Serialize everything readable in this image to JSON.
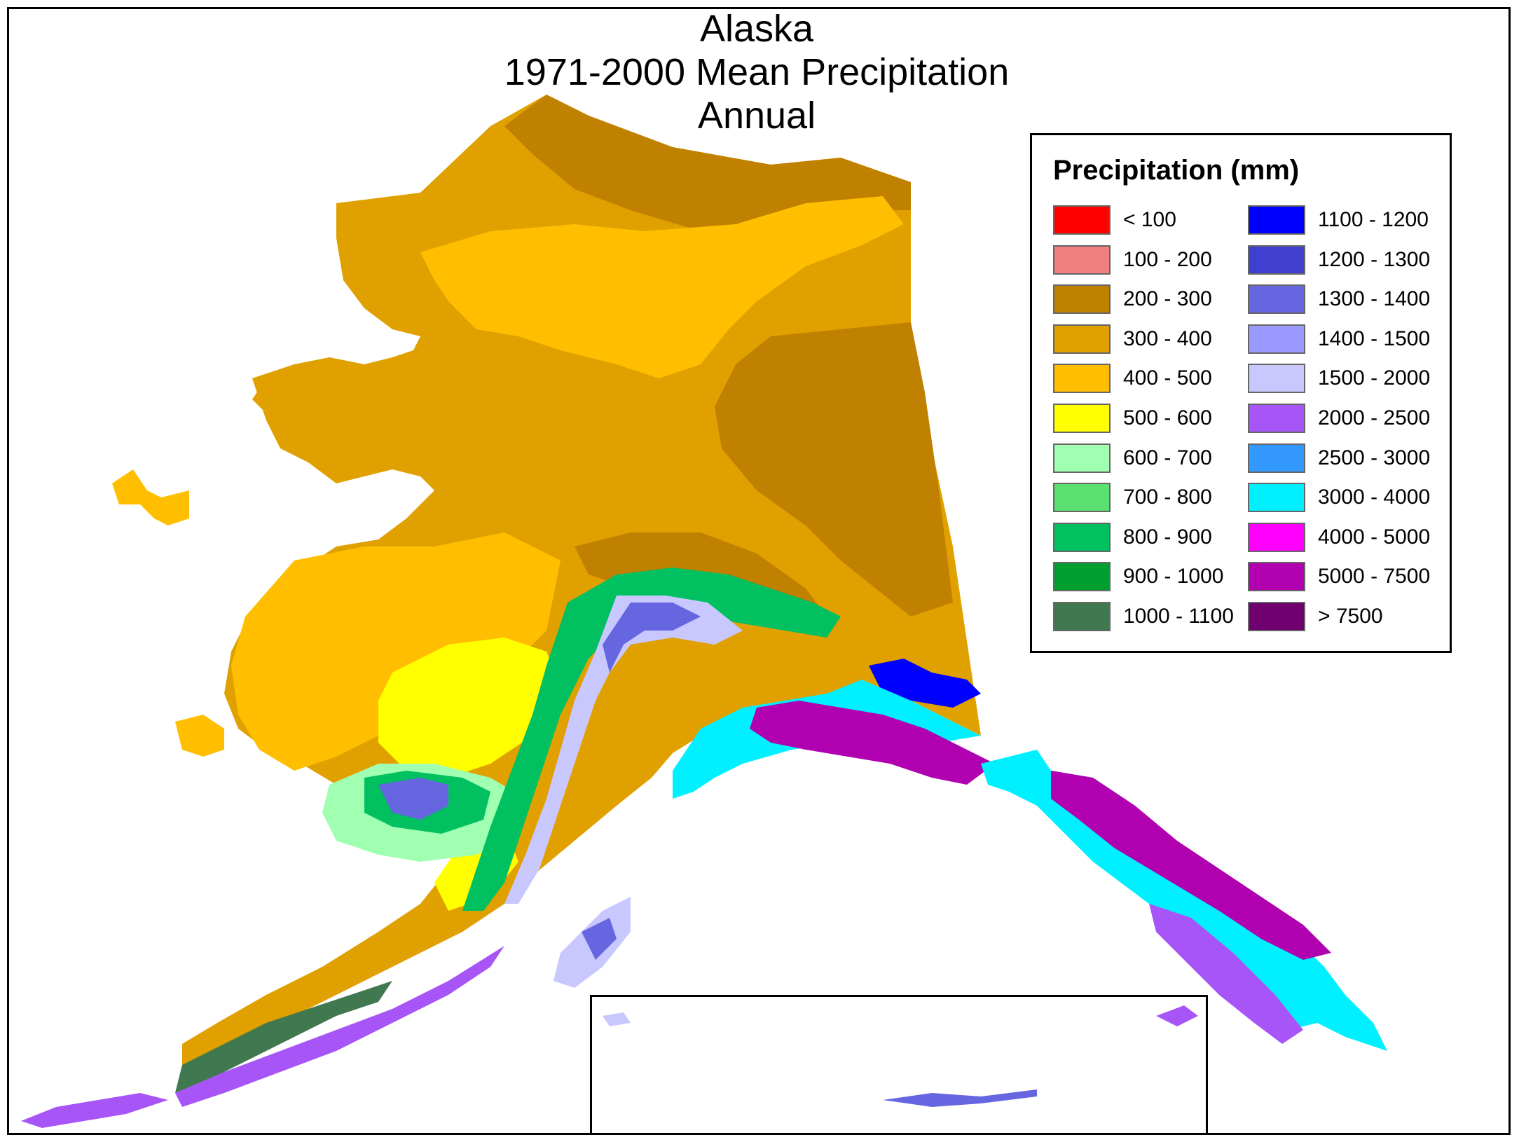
{
  "title": {
    "line1": "Alaska",
    "line2": "1971-2000 Mean Precipitation",
    "line3": "Annual"
  },
  "legend": {
    "title": "Precipitation (mm)",
    "items": [
      {
        "label": "< 100",
        "color": "#ff0000"
      },
      {
        "label": "100 - 200",
        "color": "#f08080"
      },
      {
        "label": "200 - 300",
        "color": "#c08000"
      },
      {
        "label": "300 - 400",
        "color": "#e0a000"
      },
      {
        "label": "400 - 500",
        "color": "#ffbf00"
      },
      {
        "label": "500 - 600",
        "color": "#ffff00"
      },
      {
        "label": "600 - 700",
        "color": "#a0ffb0"
      },
      {
        "label": "700 - 800",
        "color": "#5ae070"
      },
      {
        "label": "800 - 900",
        "color": "#00c060"
      },
      {
        "label": "900 - 1000",
        "color": "#00a030"
      },
      {
        "label": "1000 - 1100",
        "color": "#407850"
      },
      {
        "label": "1100 - 1200",
        "color": "#0000ff"
      },
      {
        "label": "1200 - 1300",
        "color": "#4040d0"
      },
      {
        "label": "1300 - 1400",
        "color": "#6666e0"
      },
      {
        "label": "1400 - 1500",
        "color": "#9999ff"
      },
      {
        "label": "1500 - 2000",
        "color": "#c8c8ff"
      },
      {
        "label": "2000 - 2500",
        "color": "#a855f7"
      },
      {
        "label": "2500 - 3000",
        "color": "#3399ff"
      },
      {
        "label": "3000 - 4000",
        "color": "#00f0ff"
      },
      {
        "label": "4000 - 5000",
        "color": "#ff00ff"
      },
      {
        "label": "5000 - 7500",
        "color": "#b000b0"
      },
      {
        "label": "> 7500",
        "color": "#700070"
      }
    ]
  },
  "map_colors": {
    "tundra_dry": "#c08000",
    "interior": "#e0a000",
    "lowland": "#ffbf00",
    "wetter": "#ffff00",
    "green_light": "#a0ffb0",
    "green": "#00c060",
    "green_dark": "#407850",
    "blue": "#0000ff",
    "blue_mid": "#6666e0",
    "lavender": "#c8c8ff",
    "purple": "#a855f7",
    "cyan": "#00f0ff",
    "magenta": "#b000b0",
    "pink": "#ff00ff"
  }
}
